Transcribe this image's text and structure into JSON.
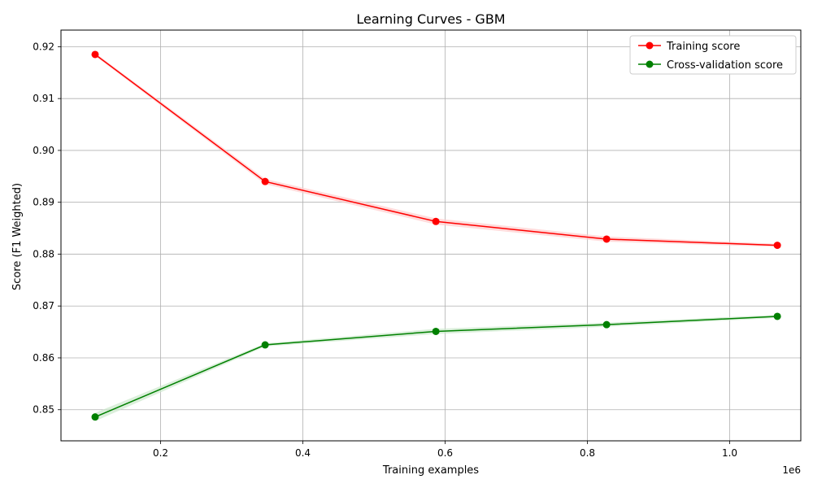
{
  "chart_data": {
    "type": "line",
    "title": "Learning Curves - GBM",
    "xlabel": "Training examples",
    "ylabel": "Score (F1 Weighted)",
    "x_offset_label": "1e6",
    "xlim": [
      0.06,
      1.1
    ],
    "ylim": [
      0.844,
      0.9232
    ],
    "x_scale_factor": 1000000,
    "xticks": [
      0.2,
      0.4,
      0.6,
      0.8,
      1.0
    ],
    "xtick_labels": [
      "0.2",
      "0.4",
      "0.6",
      "0.8",
      "1.0"
    ],
    "yticks": [
      0.85,
      0.86,
      0.87,
      0.88,
      0.89,
      0.9,
      0.91,
      0.92
    ],
    "ytick_labels": [
      "0.85",
      "0.86",
      "0.87",
      "0.88",
      "0.89",
      "0.90",
      "0.91",
      "0.92"
    ],
    "grid": true,
    "legend_position": "top-right",
    "x": [
      0.108,
      0.347,
      0.587,
      0.827,
      1.067
    ],
    "series": [
      {
        "name": "Training score",
        "color": "#ff0000",
        "band_color": "#ffcccc",
        "values": [
          0.9185,
          0.894,
          0.8863,
          0.8829,
          0.8817
        ],
        "std": [
          0.0003,
          0.0005,
          0.0006,
          0.0005,
          0.0003
        ]
      },
      {
        "name": "Cross-validation score",
        "color": "#008000",
        "band_color": "#cce8cc",
        "values": [
          0.8486,
          0.8625,
          0.8651,
          0.8664,
          0.868
        ],
        "std": [
          0.0008,
          0.0003,
          0.0005,
          0.0004,
          0.0003
        ]
      }
    ]
  }
}
